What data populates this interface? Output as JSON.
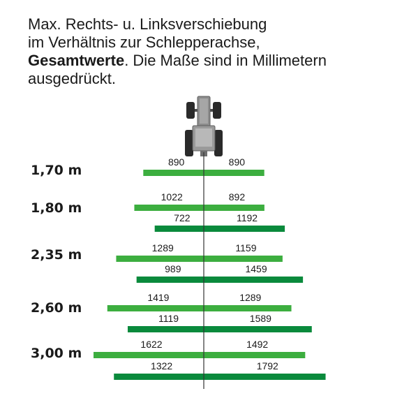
{
  "intro": {
    "line1": "Max. Rechts- u. Linksverschiebung",
    "line2": "im Verhältnis zur Schlepperachse,",
    "bold": "Gesamtwerte",
    "line3_rest": ". Die Maße sind in Millimetern",
    "line4": "ausgedrückt."
  },
  "colors": {
    "light_green": "#3cae3f",
    "dark_green": "#0a8a3c",
    "axis": "#333333"
  },
  "icon": "tractor-top-view-icon",
  "groups": [
    {
      "label": "1,70 m",
      "bars": [
        {
          "left": "890",
          "right": "890",
          "shade": "light"
        }
      ]
    },
    {
      "label": "1,80 m",
      "bars": [
        {
          "left": "1022",
          "right": "892",
          "shade": "light"
        },
        {
          "left": "722",
          "right": "1192",
          "shade": "dark"
        }
      ]
    },
    {
      "label": "2,35 m",
      "bars": [
        {
          "left": "1289",
          "right": "1159",
          "shade": "light"
        },
        {
          "left": "989",
          "right": "1459",
          "shade": "dark"
        }
      ]
    },
    {
      "label": "2,60 m",
      "bars": [
        {
          "left": "1419",
          "right": "1289",
          "shade": "light"
        },
        {
          "left": "1119",
          "right": "1589",
          "shade": "dark"
        }
      ]
    },
    {
      "label": "3,00 m",
      "bars": [
        {
          "left": "1622",
          "right": "1492",
          "shade": "light"
        },
        {
          "left": "1322",
          "right": "1792",
          "shade": "dark"
        }
      ]
    }
  ]
}
